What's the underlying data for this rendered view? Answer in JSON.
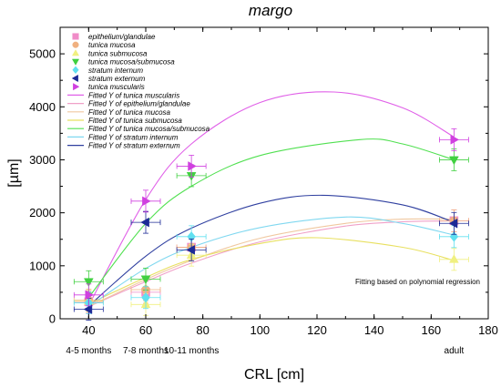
{
  "chart_data": {
    "type": "scatter",
    "title": "margo",
    "xlabel": "CRL [cm]",
    "ylabel": "[µm]",
    "xlim": [
      30,
      180
    ],
    "ylim": [
      0,
      5500
    ],
    "xticks": [
      "40",
      "60",
      "80",
      "100",
      "120",
      "140",
      "160",
      "180"
    ],
    "yticks": [
      "0",
      "1000",
      "2000",
      "3000",
      "4000",
      "5000"
    ],
    "age_labels": [
      {
        "x": 40,
        "label": "4-5 months"
      },
      {
        "x": 60,
        "label": "7-8 months"
      },
      {
        "x": 76,
        "label": "10-11 months"
      },
      {
        "x": 168,
        "label": "adult"
      }
    ],
    "note": "Fitting based on polynomial regression",
    "legend_position": "top-left",
    "series": [
      {
        "name": "epithelium/glandulae",
        "marker": "square",
        "color": "#f08cc8",
        "x": [
          40,
          60,
          76,
          168
        ],
        "y": [
          320,
          500,
          1350,
          1850
        ]
      },
      {
        "name": "tunica mucosa",
        "marker": "circle",
        "color": "#f0b080",
        "x": [
          40,
          60,
          76,
          168
        ],
        "y": [
          350,
          550,
          1350,
          1850
        ]
      },
      {
        "name": "tunica submucosa",
        "marker": "triangle-up",
        "color": "#f0f080",
        "x": [
          40,
          60,
          76,
          168
        ],
        "y": [
          330,
          270,
          1200,
          1120
        ]
      },
      {
        "name": "tunica mucosa/submucosa",
        "marker": "triangle-down",
        "color": "#40d040",
        "x": [
          40,
          60,
          76,
          168
        ],
        "y": [
          700,
          750,
          2700,
          3000
        ]
      },
      {
        "name": "stratum internum",
        "marker": "diamond",
        "color": "#60e0f0",
        "x": [
          40,
          60,
          76,
          168
        ],
        "y": [
          300,
          400,
          1550,
          1550
        ]
      },
      {
        "name": "stratum externum",
        "marker": "triangle-left",
        "color": "#1c2a96",
        "x": [
          40,
          60,
          76,
          168
        ],
        "y": [
          180,
          1820,
          1300,
          1800
        ]
      },
      {
        "name": "tunica muscularis",
        "marker": "triangle-right",
        "color": "#d040e0",
        "x": [
          40,
          60,
          76,
          168
        ],
        "y": [
          450,
          2220,
          2880,
          3380
        ]
      }
    ],
    "fits": [
      {
        "name": "Fitted Y of  tunica muscularis",
        "color": "#e060e8",
        "x": [
          40,
          60,
          76,
          100,
          126,
          150,
          168
        ],
        "y": [
          250,
          2250,
          3300,
          4080,
          4280,
          3980,
          3430
        ]
      },
      {
        "name": "Fitted Y of  epithelium/glandulae",
        "color": "#f0a0c8",
        "x": [
          40,
          60,
          76,
          100,
          130,
          150,
          168
        ],
        "y": [
          230,
          700,
          1050,
          1450,
          1750,
          1830,
          1850
        ]
      },
      {
        "name": "Fitted Y of  tunica mucosa",
        "color": "#f0c8a0",
        "x": [
          40,
          60,
          76,
          100,
          130,
          150,
          168
        ],
        "y": [
          230,
          740,
          1100,
          1520,
          1800,
          1880,
          1880
        ]
      },
      {
        "name": "Fitted Y of  tunica submucosa",
        "color": "#e8e060",
        "x": [
          40,
          60,
          76,
          100,
          120,
          150,
          168
        ],
        "y": [
          280,
          780,
          1120,
          1420,
          1530,
          1350,
          1100
        ]
      },
      {
        "name": "Fitted Y of  tunica mucosa/submucosa",
        "color": "#50e050",
        "x": [
          40,
          60,
          76,
          100,
          135,
          150,
          168
        ],
        "y": [
          400,
          1800,
          2500,
          3080,
          3380,
          3300,
          3000
        ]
      },
      {
        "name": "Fitted Y of  stratum internum",
        "color": "#80d8f0",
        "x": [
          40,
          60,
          76,
          100,
          130,
          150,
          168
        ],
        "y": [
          230,
          950,
          1350,
          1720,
          1920,
          1800,
          1580
        ]
      },
      {
        "name": "Fitted Y of  stratum externum",
        "color": "#3040a0",
        "x": [
          40,
          60,
          76,
          100,
          122,
          150,
          168
        ],
        "y": [
          240,
          1180,
          1710,
          2180,
          2330,
          2150,
          1820
        ]
      }
    ]
  }
}
